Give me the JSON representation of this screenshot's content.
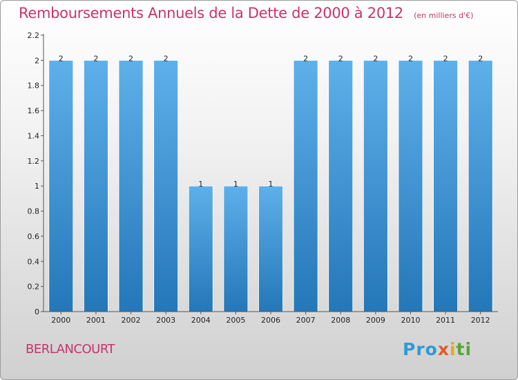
{
  "header": {
    "title": "Remboursements Annuels de la Dette de 2000 à 2012",
    "subtitle": "(en milliers d'€)"
  },
  "footer": {
    "commune": "BERLANCOURT",
    "logo": "Proxiti"
  },
  "colors": {
    "title": "#c8336b",
    "bar_light": "#5eb0ea",
    "bar_dark": "#2477b8"
  },
  "chart_data": {
    "type": "bar",
    "title": "Remboursements Annuels de la Dette de 2000 à 2012",
    "subtitle": "(en milliers d'€)",
    "categories": [
      "2000",
      "2001",
      "2002",
      "2003",
      "2004",
      "2005",
      "2006",
      "2007",
      "2008",
      "2009",
      "2010",
      "2011",
      "2012"
    ],
    "values": [
      2,
      2,
      2,
      2,
      1,
      1,
      1,
      2,
      2,
      2,
      2,
      2,
      2
    ],
    "data_labels": [
      "2",
      "2",
      "2",
      "2",
      "1",
      "1",
      "1",
      "2",
      "2",
      "2",
      "2",
      "2",
      "2"
    ],
    "ylim": [
      0,
      2.2
    ],
    "yticks": [
      0,
      0.2,
      0.4,
      0.6,
      0.8,
      1,
      1.2,
      1.4,
      1.6,
      1.8,
      2,
      2.2
    ],
    "ytick_labels": [
      "0",
      "0.2",
      "0.4",
      "0.6",
      "0.8",
      "1",
      "1.2",
      "1.4",
      "1.6",
      "1.8",
      "2",
      "2.2"
    ],
    "xlabel": "",
    "ylabel": "",
    "grid": false,
    "legend": "none"
  }
}
